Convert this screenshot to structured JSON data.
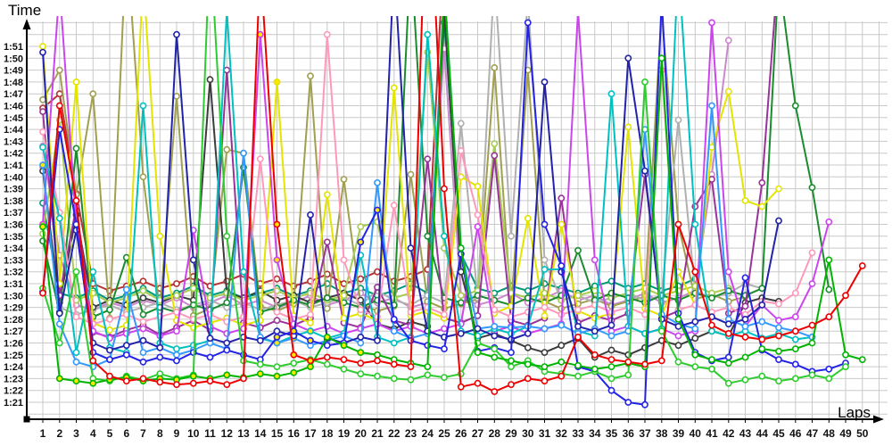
{
  "page": {
    "background": "#ffffff"
  },
  "chart_data": {
    "type": "line",
    "title": "",
    "ylabel": "Time",
    "xlabel": "Laps",
    "xlim": [
      1,
      50
    ],
    "ylim_seconds": [
      81,
      111
    ],
    "grid": true,
    "grid_color": "#c9c9c9",
    "axis_color": "#000000",
    "tick_label_color": "#111111",
    "marker_fill_default": "#ffffff",
    "yellow_flag_fill": "#ffe800",
    "legend": "none",
    "x_ticks": [
      1,
      2,
      3,
      4,
      5,
      6,
      7,
      8,
      9,
      10,
      11,
      12,
      13,
      14,
      15,
      16,
      17,
      18,
      19,
      20,
      21,
      22,
      23,
      24,
      25,
      26,
      27,
      28,
      29,
      30,
      31,
      32,
      33,
      34,
      35,
      36,
      37,
      38,
      39,
      40,
      41,
      42,
      43,
      44,
      45,
      46,
      47,
      48,
      49,
      50
    ],
    "y_tick_labels": [
      "1:21",
      "1:22",
      "1:23",
      "1:24",
      "1:25",
      "1:26",
      "1:27",
      "1:28",
      "1:29",
      "1:30",
      "1:31",
      "1:32",
      "1:33",
      "1:34",
      "1:35",
      "1:36",
      "1:37",
      "1:38",
      "1:39",
      "1:40",
      "1:41",
      "1:42",
      "1:43",
      "1:44",
      "1:45",
      "1:46",
      "1:47",
      "1:48",
      "1:49",
      "1:50",
      "1:51"
    ],
    "series": [
      {
        "name": "series-17-teal",
        "color": "#009977",
        "yellow_marker_laps": [],
        "lap_times_seconds": [
          97.8,
          90.2,
          89.8,
          90.4,
          89.6,
          90.0,
          90.6,
          89.8,
          90.2,
          90.8,
          90.0,
          90.4,
          89.8,
          90.2,
          90.6,
          90.0,
          90.4,
          91.0,
          90.2,
          90.6,
          90.0,
          90.4,
          91.0,
          90.2,
          113.0,
          93.5,
          90.6,
          90.2,
          90.8,
          90.4,
          91.0,
          90.6,
          90.2,
          90.8,
          91.2,
          90.6,
          91.0,
          90.4,
          90.8,
          91.4
        ]
      },
      {
        "name": "series-18-maroon",
        "color": "#b43333",
        "yellow_marker_laps": [],
        "lap_times_seconds": [
          105.8,
          107.0,
          98.6,
          91.0,
          90.4,
          90.8,
          91.2,
          90.6,
          91.0,
          91.6,
          90.8,
          91.2,
          91.8,
          91.0,
          91.4,
          90.8,
          91.2,
          91.8,
          91.0,
          91.4,
          92.0,
          91.2,
          91.6,
          92.2,
          120.0
        ]
      },
      {
        "name": "series-19-plum",
        "color": "#cc88cc",
        "yellow_marker_laps": [],
        "lap_times_seconds": [
          102.6,
          93.4,
          89.2,
          88.8,
          89.4,
          89.0,
          89.6,
          89.2,
          89.8,
          89.0,
          89.4,
          90.0,
          89.2,
          89.6,
          89.0,
          89.4,
          90.0,
          89.2,
          89.6,
          90.2,
          89.4,
          89.8,
          89.0,
          89.4,
          110.8,
          90.0,
          89.2,
          89.6,
          90.2,
          89.4,
          89.8,
          90.4,
          89.6,
          90.0,
          89.2,
          89.6,
          90.2,
          89.4,
          89.8,
          90.4,
          100.2,
          111.5
        ]
      },
      {
        "name": "series-11-olive",
        "color": "#a0a050",
        "yellow_marker_laps": [],
        "lap_times_seconds": [
          106.5,
          109.0,
          98.5,
          107.0,
          88.1,
          120.0,
          100.0,
          88.7,
          106.8,
          88.3,
          88.9,
          102.3,
          102.0,
          89.1,
          88.7,
          89.3,
          108.5,
          88.9,
          99.8,
          89.3,
          88.7,
          89.1,
          100.2,
          89.5,
          88.9,
          89.3,
          89.7,
          109.2,
          89.1,
          109.0,
          89.5,
          88.9,
          89.3,
          89.7,
          89.1,
          89.5,
          89.9,
          114.0,
          96.0,
          89.7,
          90.1,
          89.5,
          89.9
        ]
      },
      {
        "name": "series-13-gray",
        "color": "#b0b0b0",
        "yellow_marker_laps": [],
        "lap_times_seconds": [
          100.8,
          89.0,
          88.4,
          88.8,
          89.2,
          88.6,
          89.0,
          89.4,
          88.8,
          89.2,
          89.6,
          89.0,
          89.4,
          88.8,
          89.2,
          89.6,
          89.0,
          89.4,
          89.8,
          89.2,
          90.4,
          89.6,
          89.2,
          90.0,
          89.4,
          104.5,
          89.8,
          117.0,
          95.0,
          115.0,
          93.0,
          89.6,
          90.0,
          89.4,
          89.8,
          90.2,
          89.6,
          90.0,
          104.8,
          90.4,
          89.8,
          90.2,
          91.0,
          90.6
        ]
      },
      {
        "name": "series-14-black",
        "color": "#3c3c3c",
        "yellow_marker_laps": [],
        "lap_times_seconds": [
          100.5,
          89.4,
          96.8,
          89.0,
          89.6,
          89.2,
          89.8,
          89.4,
          90.0,
          89.6,
          108.2,
          90.2,
          89.8,
          90.4,
          89.6,
          90.0,
          89.4,
          89.8,
          90.2,
          89.6,
          87.6,
          87.2,
          87.8,
          87.4,
          114.0,
          92.0,
          86.4,
          86.8,
          86.2,
          85.6,
          85.2,
          85.8,
          86.4,
          84.8,
          85.4,
          85.0,
          85.6,
          86.2,
          85.8,
          86.4,
          87.0,
          86.6,
          89.4,
          89.8,
          89.5
        ]
      },
      {
        "name": "series-15-lightgreen",
        "color": "#a6cc50",
        "yellow_marker_laps": [],
        "lap_times_seconds": [
          95.2,
          104.8,
          89.6,
          90.2,
          89.4,
          89.8,
          90.4,
          89.6,
          90.0,
          90.6,
          89.8,
          90.2,
          89.6,
          90.0,
          90.4,
          89.8,
          90.2,
          89.6,
          90.0,
          95.8,
          96.2,
          89.8,
          90.2,
          110.5,
          94.0,
          90.0,
          90.4,
          102.8,
          90.2,
          89.8,
          90.2,
          89.6,
          90.0,
          90.4,
          89.8,
          90.2,
          90.6,
          90.0,
          90.4,
          90.8,
          90.2,
          90.6
        ]
      },
      {
        "name": "series-16-darkgreen",
        "color": "#1a8c2e",
        "yellow_marker_laps": [],
        "lap_times_seconds": [
          94.6,
          88.6,
          102.4,
          88.2,
          88.8,
          93.2,
          88.4,
          89.0,
          88.6,
          89.2,
          88.8,
          89.4,
          100.8,
          88.6,
          89.0,
          89.6,
          89.2,
          89.8,
          89.4,
          89.0,
          89.6,
          89.2,
          119.0,
          95.0,
          89.8,
          89.4,
          90.0,
          89.6,
          89.2,
          89.8,
          89.4,
          90.0,
          93.8,
          89.6,
          90.2,
          89.8,
          89.4,
          90.0,
          89.6,
          90.2,
          89.8,
          90.4,
          90.0,
          90.6,
          117.0,
          106.0,
          99.1,
          90.5
        ]
      },
      {
        "name": "series-09-purple",
        "color": "#993399",
        "yellow_marker_laps": [],
        "lap_times_seconds": [
          105.5,
          90.0,
          97.5,
          86.9,
          86.5,
          87.1,
          87.5,
          86.7,
          87.3,
          87.9,
          87.1,
          109.0,
          87.7,
          87.3,
          87.9,
          87.5,
          88.1,
          94.5,
          87.7,
          87.3,
          90.7,
          87.9,
          87.5,
          101.5,
          88.1,
          87.7,
          88.3,
          101.8,
          87.9,
          87.5,
          88.1,
          98.2,
          87.7,
          88.3,
          87.9,
          88.5,
          100.2,
          88.1,
          88.7,
          97.5,
          99.8,
          88.5,
          89.1,
          99.5,
          118.0
        ]
      },
      {
        "name": "series-10-yellow",
        "color": "#e4e400",
        "yellow_marker_laps": [
          15
        ],
        "lap_times_seconds": [
          111.0,
          91.0,
          108.0,
          87.7,
          87.1,
          87.5,
          117.0,
          95.0,
          87.9,
          87.3,
          87.7,
          88.1,
          87.5,
          87.9,
          108.0,
          88.3,
          87.7,
          98.5,
          88.1,
          88.5,
          87.9,
          107.5,
          88.3,
          88.7,
          88.1,
          100.0,
          99.2,
          88.5,
          89.1,
          96.5,
          88.3,
          96.0,
          88.7,
          88.1,
          88.5,
          104.2,
          88.9,
          88.3,
          92.0,
          89.2,
          102.5,
          107.2,
          98.0,
          97.5,
          99.0
        ]
      },
      {
        "name": "series-12-pink",
        "color": "#ff99bb",
        "yellow_marker_laps": [],
        "lap_times_seconds": [
          103.8,
          97.0,
          88.2,
          87.6,
          88.0,
          88.4,
          87.8,
          88.2,
          88.6,
          88.0,
          88.4,
          87.8,
          88.2,
          101.5,
          88.6,
          88.0,
          88.4,
          112.0,
          93.0,
          88.8,
          88.2,
          97.6,
          88.6,
          89.0,
          88.4,
          102.2,
          96.8,
          88.8,
          88.2,
          88.6,
          89.0,
          88.4,
          88.8,
          89.2,
          88.6,
          89.0,
          88.4,
          109.0,
          88.8,
          89.2,
          88.6,
          89.0,
          88.4,
          89.5,
          89.3,
          90.2,
          93.6
        ]
      },
      {
        "name": "series-08-magenta",
        "color": "#cc44ee",
        "yellow_marker_laps": [
          1,
          14,
          15
        ],
        "lap_times_seconds": [
          96.0,
          116.0,
          96.0,
          87.0,
          86.4,
          86.8,
          87.2,
          86.6,
          87.0,
          95.5,
          87.4,
          86.8,
          87.2,
          112.0,
          93.0,
          87.6,
          87.0,
          87.4,
          86.8,
          87.2,
          87.6,
          87.0,
          87.4,
          86.8,
          87.2,
          87.6,
          95.8,
          87.0,
          87.4,
          86.8,
          87.2,
          87.6,
          114.0,
          93.0,
          87.0,
          87.4,
          86.8,
          87.2,
          86.6,
          87.0,
          113.0,
          92.0,
          87.4,
          89.2,
          87.9,
          88.2,
          91.0,
          96.2
        ]
      },
      {
        "name": "series-07-cyan",
        "color": "#00c0c0",
        "yellow_marker_laps": [
          15,
          16,
          17
        ],
        "lap_times_seconds": [
          102.5,
          96.5,
          85.2,
          92.0,
          85.6,
          85.2,
          106.0,
          86.0,
          85.5,
          85.8,
          86.2,
          114.0,
          92.0,
          86.4,
          86.0,
          86.6,
          87.0,
          86.4,
          86.8,
          93.4,
          86.5,
          86.0,
          86.5,
          112.0,
          95.0,
          87.0,
          86.6,
          87.2,
          86.8,
          87.4,
          92.2,
          92.2,
          87.0,
          86.6,
          107.0,
          87.4,
          86.8,
          87.2,
          118.0,
          96.0,
          87.0,
          86.6,
          87.0,
          86.4,
          86.8,
          86.3,
          86.5
        ]
      },
      {
        "name": "series-06-skyblue",
        "color": "#3399ff",
        "yellow_marker_laps": [
          1,
          15,
          16
        ],
        "lap_times_seconds": [
          101.0,
          87.6,
          84.4,
          84.0,
          84.6,
          90.5,
          85.2,
          85.6,
          85.0,
          85.4,
          86.0,
          85.5,
          102.0,
          86.5,
          86.0,
          86.4,
          85.8,
          86.2,
          86.6,
          86.0,
          99.5,
          87.0,
          86.4,
          86.8,
          116.0,
          94.0,
          87.2,
          87.4,
          87.3,
          87.4,
          87.2,
          87.5,
          86.8,
          87.2,
          86.6,
          87.0,
          104.0,
          88.4,
          87.6,
          87.2,
          106.0,
          88.0,
          87.4,
          87.8,
          87.3,
          87.0,
          86.5
        ]
      },
      {
        "name": "series-05-navy",
        "color": "#2222aa",
        "yellow_marker_laps": [],
        "lap_times_seconds": [
          110.5,
          88.5,
          95.5,
          86.0,
          85.4,
          85.8,
          86.2,
          85.6,
          112.0,
          93.0,
          86.4,
          86.0,
          86.5,
          86.2,
          87.0,
          86.6,
          96.8,
          86.4,
          86.0,
          86.5,
          86.2,
          118.0,
          94.0,
          87.0,
          86.5,
          86.8,
          87.2,
          86.6,
          86.3,
          86.8,
          108.0,
          92.0,
          87.4,
          87.0,
          87.5,
          110.0,
          100.5,
          88.0,
          87.4,
          87.8,
          88.2,
          87.6,
          88.0,
          89.2,
          96.3
        ]
      },
      {
        "name": "series-04-blue",
        "color": "#2323e6",
        "yellow_marker_laps": [
          1,
          15,
          16,
          17,
          20,
          21
        ],
        "lap_times_seconds": [
          90.3,
          104.0,
          96.0,
          85.2,
          84.6,
          85.0,
          84.4,
          84.8,
          84.5,
          85.2,
          84.8,
          85.4,
          85.0,
          84.6,
          86.5,
          87.0,
          86.2,
          85.8,
          86.0,
          94.5,
          97.2,
          88.0,
          86.2,
          85.8,
          85.5,
          93.5,
          85.3,
          85.6,
          85.2,
          113.0,
          96.0,
          92.5,
          84.0,
          83.6,
          82.0,
          81.0,
          80.8,
          115.0,
          88.5,
          85.2,
          84.5,
          84.8,
          91.5,
          85.4,
          84.6,
          84.2,
          83.6,
          83.8,
          84.3
        ]
      },
      {
        "name": "series-03-green2",
        "color": "#2ecc2e",
        "yellow_marker_laps": [],
        "lap_times_seconds": [
          90.6,
          86.0,
          92.0,
          83.0,
          82.8,
          83.2,
          82.9,
          83.4,
          83.0,
          83.3,
          120.0,
          95.0,
          84.5,
          84.2,
          84.0,
          84.3,
          84.6,
          84.2,
          83.8,
          83.4,
          83.2,
          83.0,
          82.9,
          83.3,
          83.1,
          83.4,
          86.0,
          85.5,
          84.0,
          84.5,
          83.6,
          83.4,
          83.2,
          83.6,
          83.0,
          83.3,
          108.0,
          87.0,
          84.4,
          84.0,
          83.8,
          82.6,
          82.9,
          83.2,
          82.8,
          83.0,
          83.3,
          83.0,
          84.0
        ]
      },
      {
        "name": "series-02-green",
        "color": "#00b400",
        "yellow_marker_laps": [
          1,
          2,
          3,
          4,
          5,
          6,
          7,
          8,
          9,
          10,
          11,
          12,
          13,
          14,
          15,
          16,
          17,
          18,
          19,
          20
        ],
        "lap_times_seconds": [
          95.8,
          83.0,
          82.8,
          82.6,
          82.9,
          83.1,
          82.8,
          83.0,
          82.9,
          83.2,
          83.0,
          83.3,
          83.1,
          83.4,
          83.2,
          83.5,
          84.0,
          86.5,
          85.8,
          85.2,
          85.0,
          84.6,
          84.3,
          84.0,
          116.0,
          94.0,
          85.2,
          84.8,
          84.5,
          84.2,
          84.0,
          84.4,
          84.1,
          83.8,
          84.0,
          84.3,
          84.0,
          110.0,
          88.0,
          85.0,
          84.6,
          84.3,
          84.8,
          85.5,
          85.3,
          85.5,
          86.0,
          93.0,
          85.0,
          84.6
        ]
      },
      {
        "name": "series-01-red",
        "color": "#ee0000",
        "yellow_marker_laps": [
          14,
          15,
          16,
          17
        ],
        "lap_times_seconds": [
          90.2,
          106.0,
          98.0,
          84.5,
          83.2,
          82.8,
          83.0,
          82.7,
          82.5,
          82.6,
          82.8,
          82.5,
          83.0,
          118.0,
          96.0,
          85.0,
          84.5,
          84.8,
          84.6,
          84.3,
          84.5,
          84.2,
          84.0,
          128.0,
          99.0,
          82.3,
          82.6,
          81.9,
          82.5,
          83.0,
          82.8,
          83.2,
          86.5,
          85.0,
          84.6,
          84.4,
          84.2,
          84.5,
          96.0,
          92.0,
          87.5,
          86.8,
          86.5,
          86.3,
          86.6,
          87.0,
          87.5,
          88.2,
          90.0,
          92.5
        ]
      }
    ]
  }
}
